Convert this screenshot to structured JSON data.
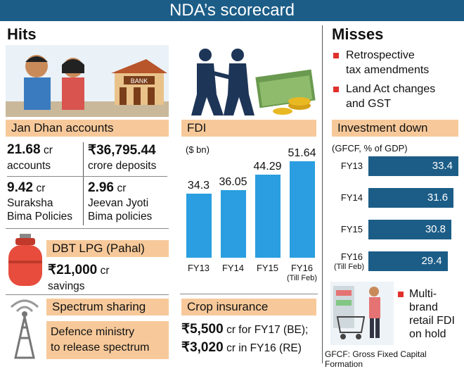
{
  "title": "NDA’s scorecard",
  "hits": {
    "heading": "Hits",
    "jan_dhan": {
      "label": "Jan Dhan accounts",
      "accounts_value": "21.68",
      "accounts_unit": "cr",
      "accounts_label": "accounts",
      "deposits_value": "₹36,795.44",
      "deposits_label": "crore deposits",
      "suraksha_value": "9.42",
      "suraksha_unit": "cr",
      "suraksha_line1": "Suraksha",
      "suraksha_line2": "Bima Policies",
      "jeevan_value": "2.96",
      "jeevan_unit": "cr",
      "jeevan_line1": "Jeevan Jyoti",
      "jeevan_line2": "Bima policies"
    },
    "dbt": {
      "label": "DBT LPG (Pahal)",
      "value": "₹21,000",
      "unit": "cr",
      "desc": "savings"
    },
    "spectrum": {
      "label": "Spectrum sharing",
      "line1": "Defence ministry",
      "line2": "to release spectrum"
    },
    "fdi": {
      "label": "FDI",
      "unit_note": "($ bn)"
    },
    "crop": {
      "label": "Crop insurance",
      "line1_value": "₹5,500",
      "line1_text": "cr for FY17 (BE);",
      "line2_value": "₹3,020",
      "line2_text": "cr in FY16 (RE)"
    }
  },
  "misses": {
    "heading": "Misses",
    "item1_line1": "Retrospective",
    "item1_line2": "tax amendments",
    "item2_line1": "Land Act changes",
    "item2_line2": "and GST",
    "investment_label": "Investment down",
    "investment_note": "(GFCF, % of GDP)",
    "retail_line1": "Multi-",
    "retail_line2": "brand",
    "retail_line3": "retail FDI",
    "retail_line4": "on hold",
    "footnote": "GFCF: Gross Fixed Capital Formation"
  },
  "colors": {
    "title_bg": "#1c5d87",
    "band": "#f7c99a",
    "fdi_bar": "#2a9ee0",
    "gfcf_bar": "#1c5d87",
    "bullet": "#e0302c"
  },
  "chart_data": [
    {
      "type": "bar",
      "categories": [
        "FY13",
        "FY14",
        "FY15",
        "FY16"
      ],
      "category_sublabels": [
        "",
        "",
        "",
        "(Till Feb)"
      ],
      "values": [
        34.3,
        36.05,
        44.29,
        51.64
      ],
      "value_labels": [
        "34.3",
        "36.05",
        "44.29",
        "51.64"
      ],
      "title": "FDI",
      "ylabel": "($ bn)"
    },
    {
      "type": "bar",
      "orientation": "horizontal",
      "categories": [
        "FY13",
        "FY14",
        "FY15",
        "FY16"
      ],
      "category_sublabels": [
        "",
        "",
        "",
        "(Till Feb)"
      ],
      "values": [
        33.4,
        31.6,
        30.8,
        29.4
      ],
      "value_labels": [
        "33.4",
        "31.6",
        "30.8",
        "29.4"
      ],
      "title": "Investment down",
      "subtitle": "(GFCF, % of GDP)"
    }
  ]
}
